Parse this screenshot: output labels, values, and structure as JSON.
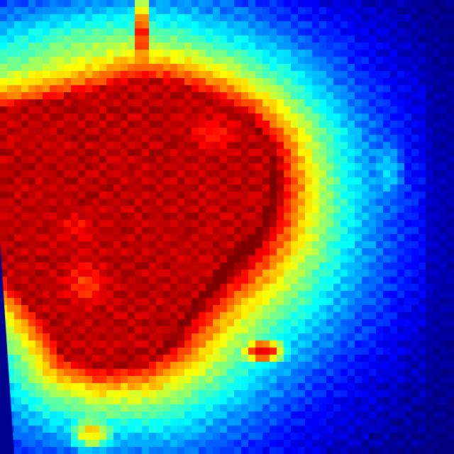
{
  "image": {
    "colormap": "jet",
    "background_color": "#00008f",
    "palette": [
      "#00008f",
      "#0000ff",
      "#0080ff",
      "#00ffff",
      "#80ff80",
      "#ffff00",
      "#ff8000",
      "#ff0000",
      "#800000"
    ]
  }
}
